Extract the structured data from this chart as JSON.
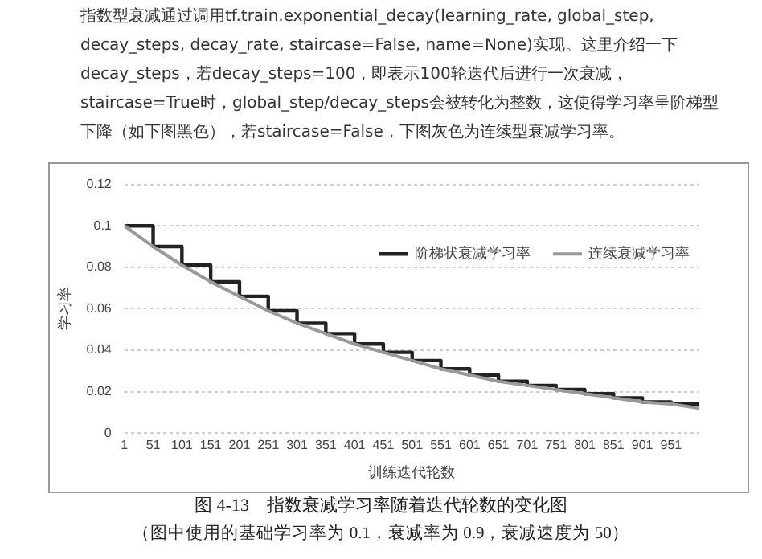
{
  "chart_data": {
    "type": "line",
    "title": "图 4-13　指数衰减学习率随着迭代轮数的变化图",
    "subtitle": "（图中使用的基础学习率为 0.1，衰减率为 0.9，衰减速度为 50）",
    "xlabel": "训练迭代轮数",
    "ylabel": "学习率",
    "annotations": [
      "指数型衰减通过调用tf.train.exponential_decay(learning_rate, global_step, decay_steps, decay_rate, staircase=False, name=None)实现。这里介绍一下decay_steps，若decay_steps=100，即表示100轮迭代后进行一次衰减，staircase=True时，global_step/decay_steps会被转化为整数，这使得学习率呈阶梯型下降（如下图黑色），若staircase=False，下图灰色为连续型衰减学习率。"
    ],
    "x": [
      1,
      51,
      101,
      151,
      201,
      251,
      301,
      351,
      401,
      451,
      501,
      551,
      601,
      651,
      701,
      751,
      801,
      851,
      901,
      951,
      1000
    ],
    "series": [
      {
        "name": "阶梯状衰减学习率",
        "type": "step",
        "color": "#222222",
        "values": [
          0.1,
          0.09,
          0.081,
          0.073,
          0.066,
          0.059,
          0.053,
          0.048,
          0.043,
          0.039,
          0.035,
          0.031,
          0.028,
          0.025,
          0.023,
          0.021,
          0.019,
          0.017,
          0.015,
          0.014,
          0.014
        ]
      },
      {
        "name": "连续衰减学习率",
        "type": "line",
        "color": "#9a9a9a",
        "values": [
          0.1,
          0.09,
          0.081,
          0.073,
          0.066,
          0.059,
          0.053,
          0.048,
          0.043,
          0.039,
          0.035,
          0.031,
          0.028,
          0.025,
          0.023,
          0.021,
          0.019,
          0.017,
          0.015,
          0.014,
          0.012
        ]
      }
    ],
    "xlim": [
      1,
      1000
    ],
    "xticks": [
      1,
      51,
      101,
      151,
      201,
      251,
      301,
      351,
      401,
      451,
      501,
      551,
      601,
      651,
      701,
      751,
      801,
      851,
      901,
      951
    ],
    "ylim": [
      0,
      0.12
    ],
    "yticks": [
      0,
      0.02,
      0.04,
      0.06,
      0.08,
      0.1,
      0.12
    ],
    "grid": "y",
    "legend": "top right",
    "marker": "none",
    "line_style": "solid"
  }
}
